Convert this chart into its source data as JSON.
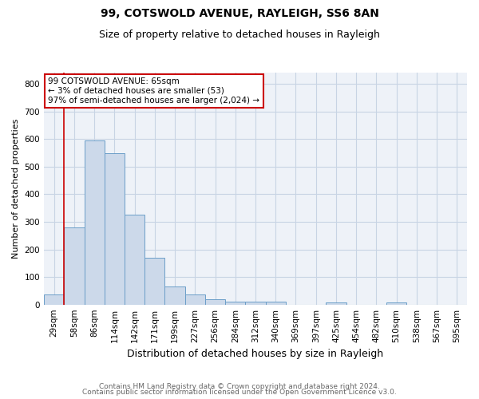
{
  "title1": "99, COTSWOLD AVENUE, RAYLEIGH, SS6 8AN",
  "title2": "Size of property relative to detached houses in Rayleigh",
  "xlabel": "Distribution of detached houses by size in Rayleigh",
  "ylabel": "Number of detached properties",
  "categories": [
    "29sqm",
    "58sqm",
    "86sqm",
    "114sqm",
    "142sqm",
    "171sqm",
    "199sqm",
    "227sqm",
    "256sqm",
    "284sqm",
    "312sqm",
    "340sqm",
    "369sqm",
    "397sqm",
    "425sqm",
    "454sqm",
    "482sqm",
    "510sqm",
    "538sqm",
    "567sqm",
    "595sqm"
  ],
  "values": [
    37,
    280,
    595,
    548,
    325,
    170,
    65,
    37,
    18,
    10,
    10,
    10,
    0,
    0,
    8,
    0,
    0,
    7,
    0,
    0,
    0
  ],
  "bar_color": "#ccd9ea",
  "bar_edgecolor": "#6b9ec8",
  "red_line_x": 0.5,
  "annotation_text": "99 COTSWOLD AVENUE: 65sqm\n← 3% of detached houses are smaller (53)\n97% of semi-detached houses are larger (2,024) →",
  "annotation_box_color": "#ffffff",
  "annotation_box_edgecolor": "#cc0000",
  "red_line_color": "#cc0000",
  "footer1": "Contains HM Land Registry data © Crown copyright and database right 2024.",
  "footer2": "Contains public sector information licensed under the Open Government Licence v3.0.",
  "ylim": [
    0,
    840
  ],
  "yticks": [
    0,
    100,
    200,
    300,
    400,
    500,
    600,
    700,
    800
  ],
  "grid_color": "#c8d4e4",
  "bg_color": "#eef2f8",
  "title_fontsize": 10,
  "subtitle_fontsize": 9,
  "ylabel_fontsize": 8,
  "xlabel_fontsize": 9,
  "tick_fontsize": 7.5,
  "footer_fontsize": 6.5,
  "ann_fontsize": 7.5
}
